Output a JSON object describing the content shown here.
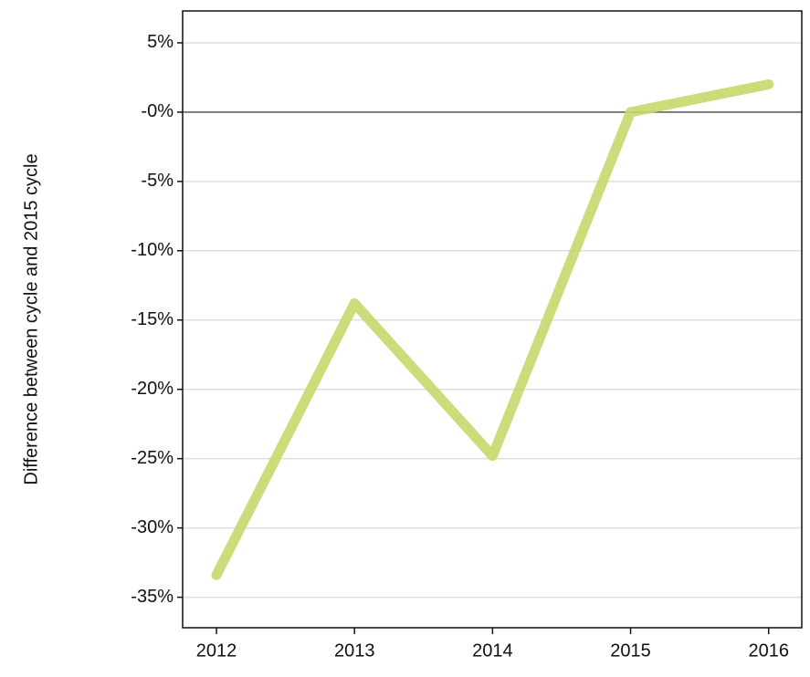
{
  "chart_data": {
    "type": "line",
    "y_label": "Difference between cycle and 2015 cycle",
    "x": [
      2012,
      2013,
      2014,
      2015,
      2016
    ],
    "series": [
      {
        "color": "#c5d86d",
        "values": [
          -33.4,
          -13.8,
          -24.8,
          0,
          2.0
        ]
      }
    ],
    "xlim": [
      2011.755,
      2016.24
    ],
    "xticks": [
      2012,
      2013,
      2014,
      2015,
      2016
    ],
    "ylim": [
      -37.2,
      7.3
    ],
    "yticks": [
      {
        "value": 5,
        "label": "5%"
      },
      {
        "value": 0,
        "label": "-0%"
      },
      {
        "value": -5,
        "label": "-5%"
      },
      {
        "value": -10,
        "label": "-10%"
      },
      {
        "value": -15,
        "label": "-15%"
      },
      {
        "value": -20,
        "label": "-20%"
      },
      {
        "value": -25,
        "label": "-25%"
      },
      {
        "value": -30,
        "label": "-30%"
      },
      {
        "value": -35,
        "label": "-35%"
      }
    ],
    "grid": true
  }
}
